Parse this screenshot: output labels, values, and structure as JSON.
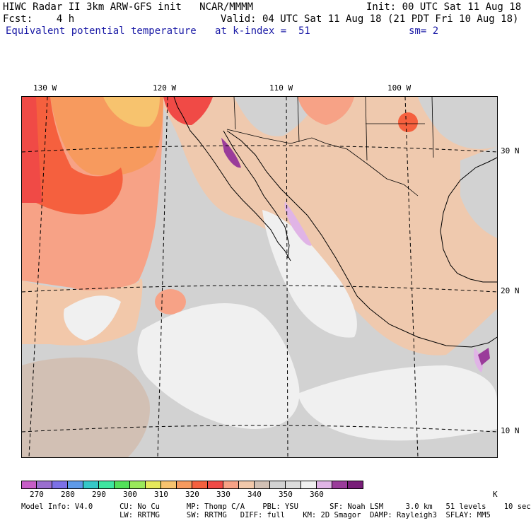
{
  "header": {
    "title": "HIWC Radar II 3km ARW-GFS init   NCAR/MMMM",
    "init": "Init: 00 UTC Sat 11 Aug 18",
    "fcst": "Fcst:    4 h",
    "valid": "Valid: 04 UTC Sat 11 Aug 18 (21 PDT Fri 10 Aug 18)",
    "field": "Equivalent potential temperature",
    "level": "at k-index =  51",
    "smooth": "sm= 2"
  },
  "map": {
    "lon_labels": [
      "130 W",
      "120 W",
      "110 W",
      "100 W"
    ],
    "lat_labels": [
      "30 N",
      "20 N",
      "10 N"
    ]
  },
  "colorbar": {
    "colors": [
      "#c75ec7",
      "#9a6ecf",
      "#7c70e6",
      "#5e9ae8",
      "#36c8c8",
      "#3ee6a0",
      "#52e05a",
      "#9ae85a",
      "#e6e85a",
      "#f7c36e",
      "#f79a5e",
      "#f5603e",
      "#f04a46",
      "#f7a286",
      "#f2c8aa",
      "#d2c0b4",
      "#d2d2d2",
      "#dcdcdc",
      "#f0f0f0",
      "#e0b4e6",
      "#9a3c9a",
      "#781e78"
    ],
    "tick_labels": [
      "270",
      "280",
      "290",
      "300",
      "310",
      "320",
      "330",
      "340",
      "350",
      "360"
    ],
    "unit": "K"
  },
  "footer": {
    "line1": "Model Info: V4.0      CU: No Cu      MP: Thomp C/A    PBL: YSU       SF: Noah LSM     3.0 km   51 levels    10 sec",
    "line2": "                      LW: RRTMG      SW: RRTMG   DIFF: full    KM: 2D Smagor  DAMP: Rayleigh3  SFLAY: MM5"
  }
}
